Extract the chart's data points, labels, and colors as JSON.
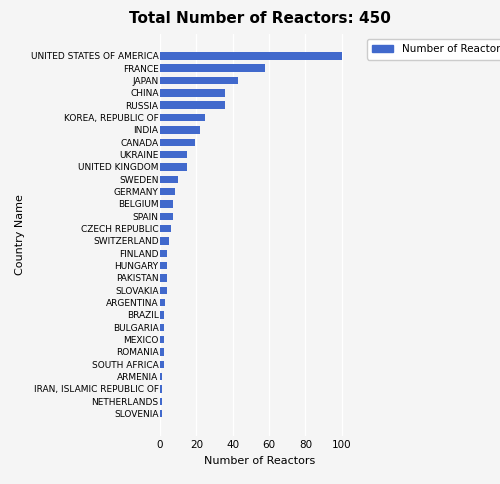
{
  "title": "Total Number of Reactors: 450",
  "xlabel": "Number of Reactors",
  "ylabel": "Country Name",
  "legend_label": "Number of Reactors",
  "bar_color": "#4169CC",
  "background_color": "#f5f5f5",
  "countries": [
    "UNITED STATES OF AMERICA",
    "FRANCE",
    "JAPAN",
    "CHINA",
    "RUSSIA",
    "KOREA, REPUBLIC OF",
    "INDIA",
    "CANADA",
    "UKRAINE",
    "UNITED KINGDOM",
    "SWEDEN",
    "GERMANY",
    "BELGIUM",
    "SPAIN",
    "CZECH REPUBLIC",
    "SWITZERLAND",
    "FINLAND",
    "HUNGARY",
    "PAKISTAN",
    "SLOVAKIA",
    "ARGENTINA",
    "BRAZIL",
    "BULGARIA",
    "MEXICO",
    "ROMANIA",
    "SOUTH AFRICA",
    "ARMENIA",
    "IRAN, ISLAMIC REPUBLIC OF",
    "NETHERLANDS",
    "SLOVENIA"
  ],
  "values": [
    100,
    58,
    43,
    36,
    36,
    25,
    22,
    19,
    15,
    15,
    10,
    8,
    7,
    7,
    6,
    5,
    4,
    4,
    4,
    4,
    3,
    2,
    2,
    2,
    2,
    2,
    1,
    1,
    1,
    1
  ],
  "xlim": [
    0,
    110
  ],
  "xticks": [
    0,
    20,
    40,
    60,
    80,
    100
  ],
  "title_fontsize": 11,
  "label_fontsize": 8,
  "tick_fontsize": 7.5,
  "ytick_fontsize": 6.5
}
